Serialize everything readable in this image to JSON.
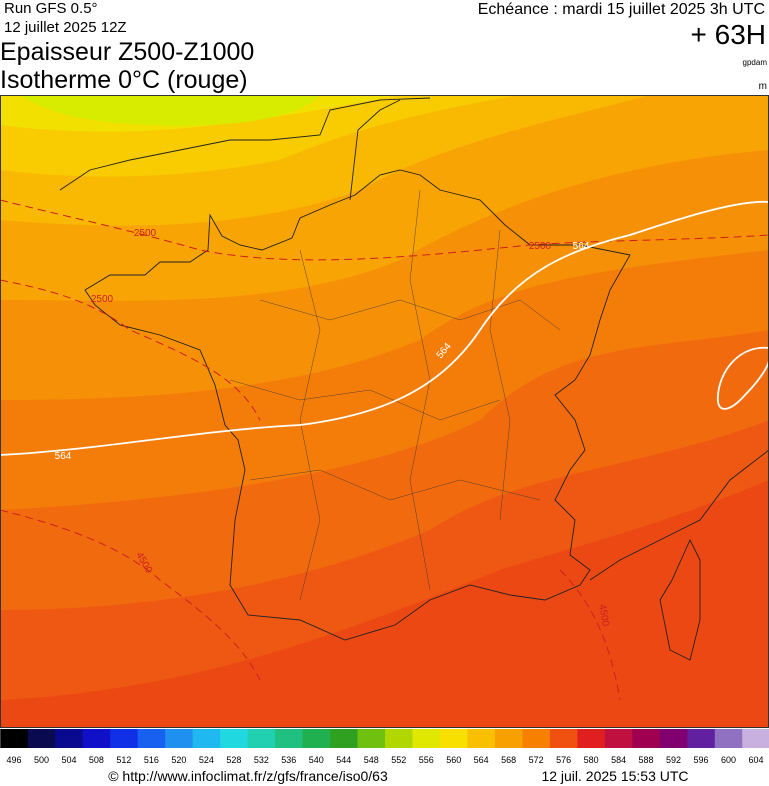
{
  "header": {
    "run": "Run GFS 0.5°",
    "date": "12 juillet 2025 12Z",
    "title": "Epaisseur Z500-Z1000",
    "subtitle": "Isotherme 0°C (rouge)",
    "echeance": "Echéance : mardi 15 juillet 2025 3h UTC",
    "lead": "+ 63H",
    "unit1": "gpdam",
    "unit2": "m"
  },
  "contour_labels": {
    "thickness": [
      "564",
      "564",
      "564"
    ],
    "freezing": [
      "2500",
      "2500",
      "2500",
      "4500",
      "4500"
    ]
  },
  "colorbar": {
    "ticks": [
      496,
      500,
      504,
      508,
      512,
      516,
      520,
      524,
      528,
      532,
      536,
      540,
      544,
      548,
      552,
      556,
      560,
      564,
      568,
      572,
      576,
      580,
      584,
      588,
      592,
      596,
      600,
      604
    ],
    "colors": [
      "#000000",
      "#0a0a50",
      "#0a0a90",
      "#1010c8",
      "#1030e8",
      "#1860f0",
      "#2090f0",
      "#20b8f0",
      "#20d8e0",
      "#20d0b0",
      "#20c080",
      "#20b050",
      "#30a020",
      "#70c010",
      "#b0d800",
      "#e0e800",
      "#f8e000",
      "#f8c000",
      "#f8a000",
      "#f88000",
      "#f05010",
      "#e02020",
      "#c01040",
      "#a00050",
      "#800070",
      "#6020a0",
      "#9070c0",
      "#c8b0e0"
    ]
  },
  "footer": {
    "url": "© http://www.infoclimat.fr/z/gfs/france/iso0/63",
    "timestamp": "12 juil. 2025 15:53 UTC"
  }
}
